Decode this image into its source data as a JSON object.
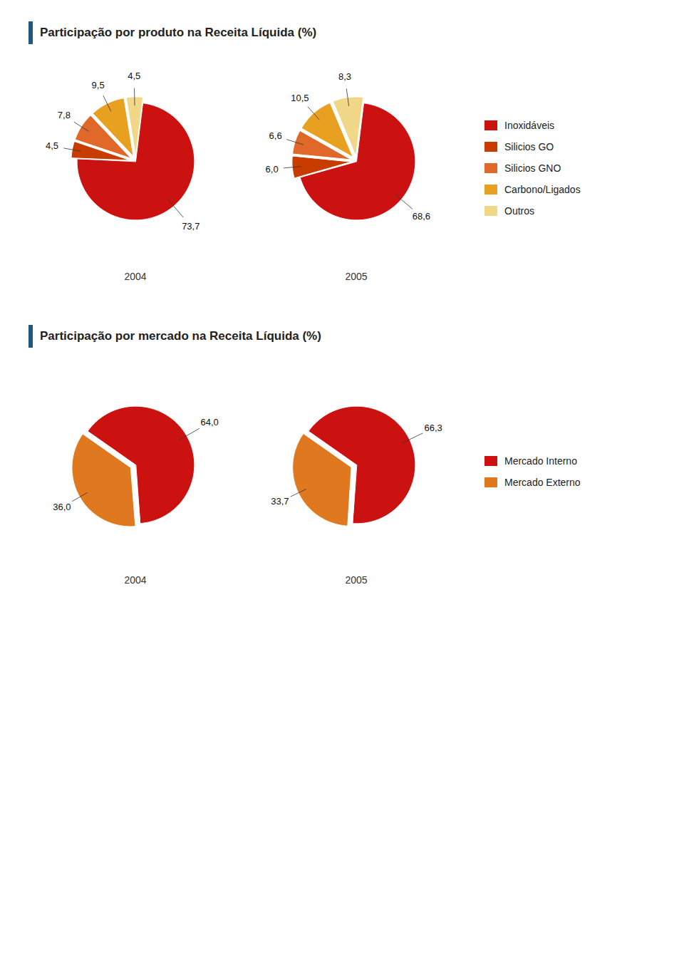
{
  "chart_data": [
    {
      "type": "pie",
      "title": "Participação por produto na Receita Líquida (%)",
      "categories": [
        "Inoxidáveis",
        "Silicios GO",
        "Silicios GNO",
        "Carbono/Ligados",
        "Outros"
      ],
      "colors": [
        "#cc1111",
        "#c83c00",
        "#e06828",
        "#e8a020",
        "#f0d888"
      ],
      "series": [
        {
          "name": "2004",
          "values": [
            73.7,
            4.5,
            7.8,
            9.5,
            4.5
          ],
          "value_labels": [
            "73,7",
            "4,5",
            "7,8",
            "9,5",
            "4,5"
          ]
        },
        {
          "name": "2005",
          "values": [
            68.6,
            6.0,
            6.6,
            10.5,
            8.3
          ],
          "value_labels": [
            "68,6",
            "6,0",
            "6,6",
            "10,5",
            "8,3"
          ]
        }
      ],
      "data_labels": true,
      "legend": "right"
    },
    {
      "type": "pie",
      "title": "Participação por mercado na Receita Líquida (%)",
      "categories": [
        "Mercado Interno",
        "Mercado Externo"
      ],
      "colors": [
        "#cc1111",
        "#e07820"
      ],
      "series": [
        {
          "name": "2004",
          "values": [
            64.0,
            36.0
          ],
          "value_labels": [
            "64,0",
            "36,0"
          ]
        },
        {
          "name": "2005",
          "values": [
            66.3,
            33.7
          ],
          "value_labels": [
            "66,3",
            "33,7"
          ]
        }
      ],
      "data_labels": true,
      "legend": "right"
    }
  ]
}
